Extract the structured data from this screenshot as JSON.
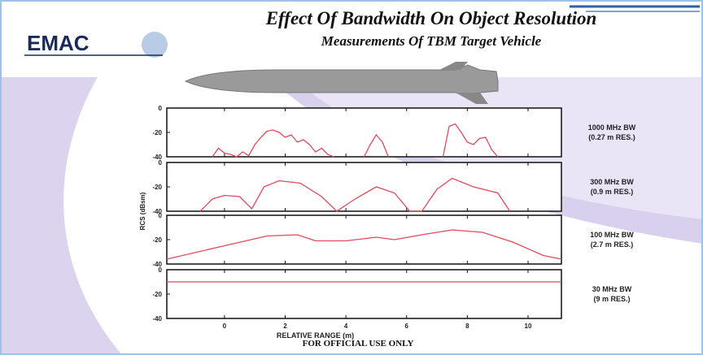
{
  "header": {
    "title": "Effect Of Bandwidth On Object Resolution",
    "subtitle": "Measurements Of TBM Target Vehicle",
    "logo": "EMAC"
  },
  "footer": "FOR OFFICIAL USE ONLY",
  "chart_data": [
    {
      "type": "line",
      "title": "1000 MHz BW",
      "subtitle": "(0.27 m RES.)",
      "color": "#e04a5a",
      "x": [
        -0.4,
        -0.2,
        0,
        0.2,
        0.4,
        0.6,
        0.8,
        1.0,
        1.2,
        1.4,
        1.6,
        1.8,
        2.0,
        2.2,
        2.4,
        2.6,
        2.8,
        3.0,
        3.2,
        3.4,
        3.6,
        4.0,
        4.6,
        4.8,
        5.0,
        5.2,
        5.4,
        6.3,
        7.2,
        7.4,
        7.6,
        7.8,
        8.0,
        8.2,
        8.4,
        8.6,
        8.8,
        9.0
      ],
      "values": [
        -40,
        -33,
        -37,
        -38,
        -40,
        -36,
        -39,
        -30,
        -24,
        -19,
        -18,
        -20,
        -24,
        -22,
        -28,
        -26,
        -30,
        -36,
        -33,
        -38,
        -40,
        null,
        -40,
        -30,
        -22,
        -28,
        -40,
        null,
        -40,
        -15,
        -13,
        -20,
        -28,
        -30,
        -25,
        -24,
        -34,
        -40
      ],
      "xlim": [
        -1.9,
        11.1
      ],
      "ylim": [
        -40,
        0
      ],
      "yticks": [
        0,
        -20,
        -40
      ]
    },
    {
      "type": "line",
      "title": "300 MHz BW",
      "subtitle": "(0.9 m RES.)",
      "color": "#e04a5a",
      "x": [
        -0.8,
        -0.4,
        0,
        0.5,
        0.9,
        1.3,
        1.8,
        2.5,
        3.2,
        3.7,
        4.3,
        5.0,
        5.6,
        6.1,
        6.5,
        7.0,
        7.5,
        8.2,
        9.0,
        9.4
      ],
      "values": [
        -40,
        -30,
        -27,
        -28,
        -38,
        -20,
        -15,
        -17,
        -28,
        -40,
        -30,
        -20,
        -25,
        -40,
        -40,
        -22,
        -13,
        -20,
        -25,
        -40
      ],
      "xlim": [
        -1.9,
        11.1
      ],
      "ylim": [
        -40,
        0
      ],
      "yticks": [
        0,
        -20,
        -40
      ]
    },
    {
      "type": "line",
      "title": "100 MHz BW",
      "subtitle": "(2.7 m RES.)",
      "color": "#e04a5a",
      "ylabel": "RCS (dBsm)",
      "x": [
        -1.9,
        0,
        1.4,
        2.4,
        3.0,
        4.0,
        5.0,
        5.6,
        6.5,
        7.5,
        8.5,
        9.5,
        10.5,
        11.1
      ],
      "values": [
        -36,
        -25,
        -17,
        -16,
        -21,
        -21,
        -18,
        -20,
        -16,
        -12,
        -14,
        -22,
        -33,
        -36
      ],
      "xlim": [
        -1.9,
        11.1
      ],
      "ylim": [
        -40,
        0
      ],
      "yticks": [
        0,
        -20,
        -40
      ]
    },
    {
      "type": "line",
      "title": "30 MHz BW",
      "subtitle": "(9 m RES.)",
      "color": "#e04a5a",
      "xlabel": "RELATIVE RANGE (m)",
      "x": [
        -1.9,
        11.1
      ],
      "values": [
        -10,
        -10
      ],
      "xlim": [
        -1.9,
        11.1
      ],
      "ylim": [
        -40,
        0
      ],
      "yticks": [
        0,
        -20,
        -40
      ],
      "xticks": [
        0,
        2,
        4,
        6,
        8,
        10
      ]
    }
  ]
}
